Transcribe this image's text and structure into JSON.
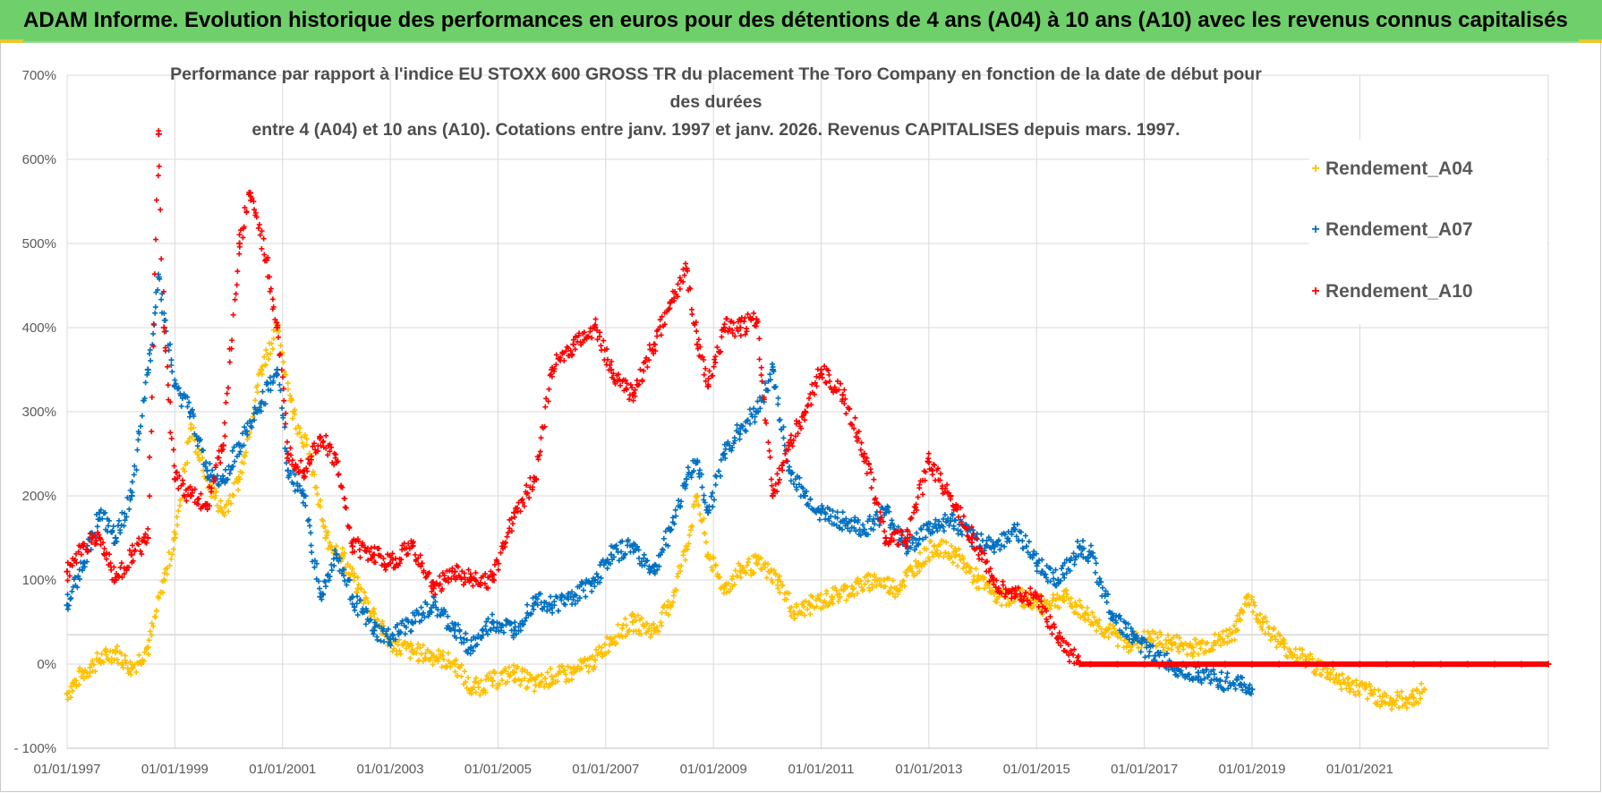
{
  "banner": {
    "title": "ADAM Informe. Evolution historique des performances en euros pour des détentions de 4 ans (A04) à 10 ans (A10) avec les revenus connus capitalisés"
  },
  "colors": {
    "banner_bg": "#6fcf6a",
    "series_a04": "#FFC000",
    "series_a07": "#0070C0",
    "series_a10": "#FF0000",
    "grid": "#d9d9d9",
    "axis_text": "#595959"
  },
  "chart_data": {
    "type": "scatter",
    "title_line1": "Performance par rapport à l'indice EU STOXX 600 GROSS TR  du placement The Toro Company en fonction de la date de début pour des durées",
    "title_line2": "entre 4 (A04) et 10 ans (A10). Cotations entre janv. 1997 et janv. 2026. Revenus CAPITALISES depuis mars. 1997.",
    "xlabel": "",
    "ylabel": "",
    "ylim": [
      -100,
      700
    ],
    "xlim": [
      1997.0,
      2024.5
    ],
    "y_ticks": [
      -100,
      0,
      100,
      200,
      300,
      400,
      500,
      600,
      700
    ],
    "y_tick_labels": [
      "- 100%",
      "0%",
      "100%",
      "200%",
      "300%",
      "400%",
      "500%",
      "600%",
      "700%"
    ],
    "x_ticks": [
      1997,
      1999,
      2001,
      2003,
      2005,
      2007,
      2009,
      2011,
      2013,
      2015,
      2017,
      2019,
      2021
    ],
    "x_tick_labels": [
      "01/01/1997",
      "01/01/1999",
      "01/01/2001",
      "01/01/2003",
      "01/01/2005",
      "01/01/2007",
      "01/01/2009",
      "01/01/2011",
      "01/01/2013",
      "01/01/2015",
      "01/01/2017",
      "01/01/2019",
      "01/01/2021"
    ],
    "legend_position": "top-right",
    "series": [
      {
        "name": "Rendement_A04",
        "color": "#FFC000",
        "x": [
          1997.0,
          1997.3,
          1997.6,
          1997.9,
          1998.2,
          1998.5,
          1998.8,
          1999.0,
          1999.3,
          1999.6,
          1999.9,
          2000.2,
          2000.6,
          2000.9,
          2001.2,
          2001.5,
          2001.8,
          2002.1,
          2002.4,
          2002.7,
          2003.0,
          2003.4,
          2003.8,
          2004.2,
          2004.5,
          2004.9,
          2005.3,
          2005.7,
          2006.0,
          2006.4,
          2006.8,
          2007.1,
          2007.5,
          2007.9,
          2008.2,
          2008.5,
          2008.7,
          2008.9,
          2009.2,
          2009.5,
          2009.8,
          2010.2,
          2010.5,
          2010.8,
          2011.2,
          2011.6,
          2012.0,
          2012.4,
          2012.8,
          2013.1,
          2013.5,
          2013.9,
          2014.3,
          2014.7,
          2015.1,
          2015.5,
          2015.9,
          2016.3,
          2016.7,
          2017.1,
          2017.5,
          2017.9,
          2018.3,
          2018.7,
          2018.9,
          2019.2,
          2019.6,
          2020.0,
          2020.4,
          2020.8,
          2021.2,
          2021.6,
          2022.0,
          2022.2
        ],
        "y": [
          -35,
          -10,
          5,
          15,
          -5,
          20,
          100,
          150,
          280,
          220,
          180,
          220,
          350,
          400,
          300,
          250,
          150,
          130,
          90,
          60,
          25,
          15,
          10,
          0,
          -30,
          -20,
          -10,
          -25,
          -15,
          -10,
          5,
          30,
          50,
          40,
          70,
          140,
          200,
          130,
          90,
          110,
          120,
          100,
          60,
          70,
          80,
          90,
          100,
          90,
          120,
          140,
          130,
          100,
          80,
          80,
          70,
          80,
          60,
          40,
          25,
          30,
          25,
          20,
          25,
          40,
          80,
          50,
          20,
          5,
          -10,
          -25,
          -35,
          -45,
          -40,
          -30
        ]
      },
      {
        "name": "Rendement_A07",
        "color": "#0070C0",
        "x": [
          1997.0,
          1997.3,
          1997.6,
          1997.9,
          1998.2,
          1998.5,
          1998.7,
          1999.0,
          1999.3,
          1999.6,
          1999.9,
          2000.2,
          2000.6,
          2000.9,
          2001.1,
          2001.4,
          2001.7,
          2002.0,
          2002.3,
          2002.7,
          2003.0,
          2003.4,
          2003.8,
          2004.2,
          2004.5,
          2004.9,
          2005.3,
          2005.7,
          2006.0,
          2006.4,
          2006.8,
          2007.1,
          2007.5,
          2007.9,
          2008.2,
          2008.5,
          2008.7,
          2008.9,
          2009.2,
          2009.5,
          2009.8,
          2010.1,
          2010.4,
          2010.7,
          2011.0,
          2011.4,
          2011.8,
          2012.2,
          2012.6,
          2013.0,
          2013.4,
          2013.8,
          2014.2,
          2014.6,
          2015.0,
          2015.4,
          2015.8,
          2016.0,
          2016.4,
          2016.8,
          2017.2,
          2017.6,
          2018.0,
          2018.4,
          2018.8,
          2019.0
        ],
        "y": [
          70,
          120,
          180,
          150,
          200,
          350,
          460,
          330,
          300,
          230,
          220,
          260,
          310,
          350,
          230,
          200,
          80,
          130,
          80,
          40,
          30,
          50,
          70,
          40,
          20,
          50,
          40,
          80,
          70,
          80,
          100,
          130,
          140,
          110,
          160,
          220,
          240,
          180,
          250,
          280,
          300,
          350,
          230,
          200,
          180,
          170,
          160,
          180,
          140,
          160,
          170,
          150,
          140,
          160,
          120,
          100,
          140,
          130,
          60,
          30,
          10,
          -5,
          -10,
          -20,
          -25,
          -30
        ]
      },
      {
        "name": "Rendement_A10",
        "color": "#FF0000",
        "x": [
          1997.0,
          1997.3,
          1997.6,
          1997.9,
          1998.2,
          1998.5,
          1998.8,
          1998.7,
          1999.0,
          1999.3,
          1999.6,
          1999.9,
          2000.2,
          2000.4,
          2000.7,
          2000.9,
          2001.1,
          2001.4,
          2001.7,
          2002.0,
          2002.3,
          2002.7,
          2003.0,
          2003.4,
          2003.8,
          2004.2,
          2004.5,
          2004.9,
          2005.3,
          2005.7,
          2006.0,
          2006.4,
          2006.8,
          2007.1,
          2007.5,
          2007.9,
          2008.2,
          2008.5,
          2008.7,
          2008.9,
          2009.2,
          2009.5,
          2009.8,
          2010.1,
          2010.4,
          2010.7,
          2011.0,
          2011.4,
          2011.8,
          2012.2,
          2012.6,
          2013.0,
          2013.4,
          2013.8,
          2014.2,
          2014.6,
          2015.0,
          2015.4,
          2015.8,
          2016.0,
          2016.5,
          2017.0,
          2017.5,
          2018.0,
          2018.5,
          2019.0,
          2019.5,
          2020.0,
          2020.5,
          2021.0,
          2021.5,
          2022.0,
          2022.5,
          2023.0,
          2023.5,
          2024.0,
          2024.5
        ],
        "y": [
          110,
          140,
          150,
          100,
          130,
          150,
          400,
          630,
          220,
          200,
          190,
          260,
          500,
          560,
          480,
          400,
          250,
          230,
          270,
          240,
          140,
          130,
          120,
          140,
          90,
          110,
          100,
          100,
          180,
          220,
          350,
          380,
          400,
          350,
          320,
          380,
          430,
          470,
          380,
          330,
          400,
          400,
          410,
          200,
          260,
          300,
          350,
          320,
          250,
          150,
          150,
          240,
          200,
          150,
          100,
          80,
          80,
          30,
          0,
          0,
          0,
          0,
          0,
          0,
          0,
          0,
          0,
          0,
          0,
          0,
          0,
          0,
          0,
          0,
          0,
          0,
          0
        ]
      }
    ]
  }
}
